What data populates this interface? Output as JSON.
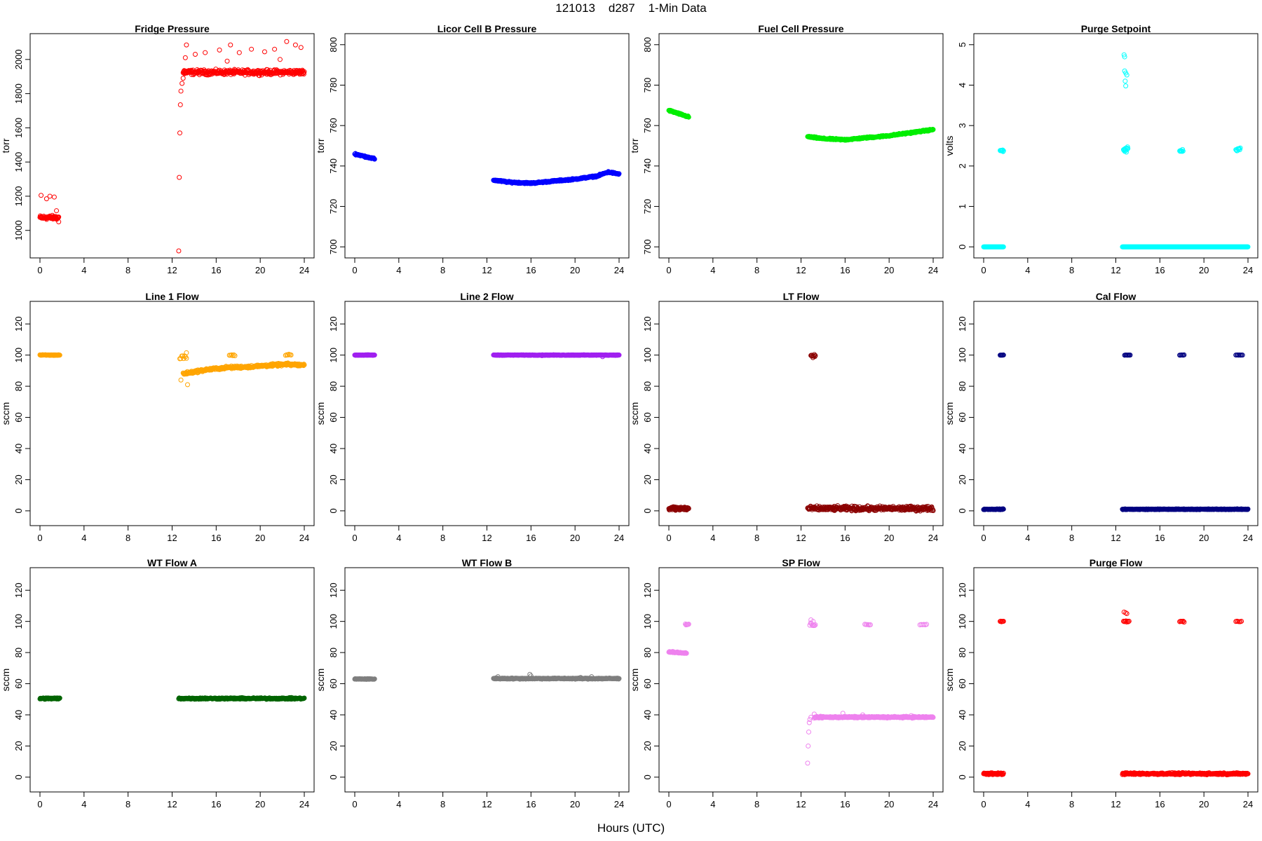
{
  "figure": {
    "title": "121013    d287    1-Min Data",
    "xlabel": "Hours (UTC)"
  },
  "chart_data": [
    {
      "type": "scatter",
      "title": "Fridge Pressure",
      "ylabel": "torr",
      "color": "#ff0000",
      "xlim": [
        0,
        24
      ],
      "ylim": [
        880,
        2110
      ],
      "xticks": [
        0,
        4,
        8,
        12,
        16,
        20,
        24
      ],
      "yticks": [
        1000,
        1200,
        1400,
        1600,
        1800,
        2000
      ],
      "segments": [
        {
          "x_range": [
            0.0,
            1.7
          ],
          "base": 1075,
          "slope": 0,
          "noise": 10,
          "n": 60,
          "outliers": [
            [
              0.1,
              1205
            ],
            [
              0.6,
              1185
            ],
            [
              0.9,
              1200
            ],
            [
              1.3,
              1195
            ],
            [
              1.5,
              1115
            ],
            [
              1.7,
              1050
            ]
          ]
        },
        {
          "x_range": [
            13.0,
            24.0
          ],
          "base": 1925,
          "slope": 0,
          "noise": 12,
          "n": 320,
          "outliers": [
            [
              12.6,
              880
            ],
            [
              12.65,
              1310
            ],
            [
              12.7,
              1570
            ],
            [
              12.75,
              1735
            ],
            [
              12.8,
              1815
            ],
            [
              12.9,
              1860
            ],
            [
              13.0,
              1890
            ],
            [
              13.1,
              1935
            ],
            [
              13.2,
              2010
            ],
            [
              13.3,
              2085
            ],
            [
              14.1,
              2030
            ],
            [
              15.0,
              2040
            ],
            [
              16.3,
              2055
            ],
            [
              17.3,
              2085
            ],
            [
              18.1,
              2040
            ],
            [
              19.2,
              2060
            ],
            [
              20.4,
              2045
            ],
            [
              21.3,
              2060
            ],
            [
              22.4,
              2105
            ],
            [
              23.2,
              2085
            ],
            [
              23.7,
              2070
            ],
            [
              17.0,
              1990
            ],
            [
              21.8,
              2000
            ]
          ]
        }
      ]
    },
    {
      "type": "scatter",
      "title": "Licor Cell B Pressure",
      "ylabel": "torr",
      "color": "#0000ff",
      "xlim": [
        0,
        24
      ],
      "ylim": [
        698,
        802
      ],
      "xticks": [
        0,
        4,
        8,
        12,
        16,
        20,
        24
      ],
      "yticks": [
        700,
        720,
        740,
        760,
        780,
        800
      ],
      "segments": [
        {
          "x_range": [
            0.0,
            1.8
          ],
          "base": 746,
          "slope": -1.4,
          "noise": 0.3,
          "n": 60
        },
        {
          "x_range": [
            12.6,
            24.0
          ],
          "base": 733,
          "slope": 0,
          "noise": 0.3,
          "n": 340,
          "curve": [
            [
              12.6,
              733
            ],
            [
              14,
              732
            ],
            [
              16,
              731.5
            ],
            [
              18,
              732.5
            ],
            [
              20,
              733.5
            ],
            [
              22,
              735
            ],
            [
              23,
              737
            ],
            [
              24,
              736
            ]
          ]
        }
      ]
    },
    {
      "type": "scatter",
      "title": "Fuel Cell Pressure",
      "ylabel": "torr",
      "color": "#00ee00",
      "xlim": [
        0,
        24
      ],
      "ylim": [
        698,
        802
      ],
      "xticks": [
        0,
        4,
        8,
        12,
        16,
        20,
        24
      ],
      "yticks": [
        700,
        720,
        740,
        760,
        780,
        800
      ],
      "segments": [
        {
          "x_range": [
            0.0,
            1.8
          ],
          "base": 767.5,
          "slope": -1.8,
          "noise": 0.3,
          "n": 60
        },
        {
          "x_range": [
            12.6,
            24.0
          ],
          "base": 754,
          "slope": 0,
          "noise": 0.3,
          "n": 340,
          "curve": [
            [
              12.6,
              754.5
            ],
            [
              14,
              753.5
            ],
            [
              16,
              753
            ],
            [
              18,
              754
            ],
            [
              20,
              755
            ],
            [
              22,
              756.5
            ],
            [
              24,
              758
            ]
          ]
        }
      ]
    },
    {
      "type": "scatter",
      "title": "Purge Setpoint",
      "ylabel": "volts",
      "color": "#00ffff",
      "xlim": [
        0,
        24
      ],
      "ylim": [
        -0.1,
        5.1
      ],
      "xticks": [
        0,
        4,
        8,
        12,
        16,
        20,
        24
      ],
      "yticks": [
        0,
        1,
        2,
        3,
        4,
        5
      ],
      "segments": [
        {
          "x_range": [
            0.0,
            1.8
          ],
          "base": 0,
          "slope": 0,
          "noise": 0,
          "n": 50
        },
        {
          "x_range": [
            12.6,
            24.0
          ],
          "base": 0,
          "slope": 0,
          "noise": 0,
          "n": 340
        },
        {
          "x_range": [
            1.5,
            1.8
          ],
          "base": 2.38,
          "slope": 0,
          "noise": 0.02,
          "n": 10
        },
        {
          "x_range": [
            12.7,
            13.1
          ],
          "base": 2.4,
          "slope": 0,
          "noise": 0.05,
          "n": 12
        },
        {
          "x_range": [
            17.8,
            18.1
          ],
          "base": 2.38,
          "slope": 0,
          "noise": 0.02,
          "n": 8
        },
        {
          "x_range": [
            22.9,
            23.3
          ],
          "base": 2.4,
          "slope": 0.1,
          "noise": 0.04,
          "n": 10
        }
      ],
      "extra_points": [
        [
          12.75,
          4.75
        ],
        [
          12.8,
          4.7
        ],
        [
          12.8,
          4.35
        ],
        [
          12.9,
          4.3
        ],
        [
          13.0,
          4.25
        ],
        [
          12.85,
          4.1
        ],
        [
          12.9,
          3.98
        ]
      ]
    },
    {
      "type": "scatter",
      "title": "Line 1 Flow",
      "ylabel": "sccm",
      "color": "#ffa500",
      "xlim": [
        0,
        24
      ],
      "ylim": [
        -5,
        130
      ],
      "xticks": [
        0,
        4,
        8,
        12,
        16,
        20,
        24
      ],
      "yticks": [
        0,
        20,
        40,
        60,
        80,
        100,
        120
      ],
      "segments": [
        {
          "x_range": [
            0.0,
            1.8
          ],
          "base": 100,
          "slope": 0,
          "noise": 0.2,
          "n": 60
        },
        {
          "x_range": [
            13.0,
            24.0
          ],
          "base": 90,
          "slope": 0,
          "noise": 0.7,
          "n": 320,
          "curve": [
            [
              13.0,
              88
            ],
            [
              15,
              90.5
            ],
            [
              17,
              92
            ],
            [
              19,
              92.5
            ],
            [
              21,
              93.5
            ],
            [
              22.5,
              94
            ],
            [
              24,
              93.5
            ]
          ]
        },
        {
          "x_range": [
            12.7,
            13.3
          ],
          "base": 99,
          "slope": 0,
          "noise": 1,
          "n": 8
        },
        {
          "x_range": [
            17.2,
            17.7
          ],
          "base": 100,
          "slope": 0,
          "noise": 0.4,
          "n": 6
        },
        {
          "x_range": [
            22.3,
            22.8
          ],
          "base": 100,
          "slope": 0,
          "noise": 0.4,
          "n": 6
        }
      ],
      "extra_points": [
        [
          13.4,
          81
        ],
        [
          12.8,
          84
        ],
        [
          13.3,
          101.5
        ]
      ]
    },
    {
      "type": "scatter",
      "title": "Line 2 Flow",
      "ylabel": "sccm",
      "color": "#a020f0",
      "xlim": [
        0,
        24
      ],
      "ylim": [
        -5,
        130
      ],
      "xticks": [
        0,
        4,
        8,
        12,
        16,
        20,
        24
      ],
      "yticks": [
        0,
        20,
        40,
        60,
        80,
        100,
        120
      ],
      "segments": [
        {
          "x_range": [
            0.0,
            1.8
          ],
          "base": 100,
          "slope": 0,
          "noise": 0.15,
          "n": 60
        },
        {
          "x_range": [
            12.6,
            24.0
          ],
          "base": 100,
          "slope": 0,
          "noise": 0.15,
          "n": 340
        }
      ],
      "extra_points": [
        [
          22.5,
          99
        ],
        [
          17.0,
          99.6
        ]
      ]
    },
    {
      "type": "scatter",
      "title": "LT Flow",
      "ylabel": "sccm",
      "color": "#8b0000",
      "xlim": [
        0,
        24
      ],
      "ylim": [
        -5,
        130
      ],
      "xticks": [
        0,
        4,
        8,
        12,
        16,
        20,
        24
      ],
      "yticks": [
        0,
        20,
        40,
        60,
        80,
        100,
        120
      ],
      "segments": [
        {
          "x_range": [
            0.0,
            1.8
          ],
          "base": 1.5,
          "slope": 0,
          "noise": 1.2,
          "n": 60
        },
        {
          "x_range": [
            12.6,
            24.0
          ],
          "base": 1.5,
          "slope": 0,
          "noise": 1.2,
          "n": 340
        },
        {
          "x_range": [
            12.9,
            13.3
          ],
          "base": 99.5,
          "slope": 0,
          "noise": 1,
          "n": 10
        }
      ]
    },
    {
      "type": "scatter",
      "title": "Cal Flow",
      "ylabel": "sccm",
      "color": "#000080",
      "xlim": [
        0,
        24
      ],
      "ylim": [
        -5,
        130
      ],
      "xticks": [
        0,
        4,
        8,
        12,
        16,
        20,
        24
      ],
      "yticks": [
        0,
        20,
        40,
        60,
        80,
        100,
        120
      ],
      "segments": [
        {
          "x_range": [
            0.0,
            1.8
          ],
          "base": 1,
          "slope": 0,
          "noise": 0.2,
          "n": 50
        },
        {
          "x_range": [
            12.6,
            24.0
          ],
          "base": 1,
          "slope": 0,
          "noise": 0.2,
          "n": 330
        },
        {
          "x_range": [
            1.5,
            1.8
          ],
          "base": 100,
          "slope": 0,
          "noise": 0.1,
          "n": 6
        },
        {
          "x_range": [
            12.8,
            13.3
          ],
          "base": 100,
          "slope": 0,
          "noise": 0.1,
          "n": 8
        },
        {
          "x_range": [
            17.8,
            18.2
          ],
          "base": 100,
          "slope": 0,
          "noise": 0.1,
          "n": 6
        },
        {
          "x_range": [
            22.9,
            23.5
          ],
          "base": 100,
          "slope": 0,
          "noise": 0.1,
          "n": 8
        }
      ]
    },
    {
      "type": "scatter",
      "title": "WT Flow A",
      "ylabel": "sccm",
      "color": "#006400",
      "xlim": [
        0,
        24
      ],
      "ylim": [
        -5,
        130
      ],
      "xticks": [
        0,
        4,
        8,
        12,
        16,
        20,
        24
      ],
      "yticks": [
        0,
        20,
        40,
        60,
        80,
        100,
        120
      ],
      "segments": [
        {
          "x_range": [
            0.0,
            1.8
          ],
          "base": 50.5,
          "slope": 0,
          "noise": 0.4,
          "n": 60
        },
        {
          "x_range": [
            12.6,
            24.0
          ],
          "base": 50.5,
          "slope": 0,
          "noise": 0.4,
          "n": 340
        }
      ]
    },
    {
      "type": "scatter",
      "title": "WT Flow B",
      "ylabel": "sccm",
      "color": "#7f7f7f",
      "xlim": [
        0,
        24
      ],
      "ylim": [
        -5,
        130
      ],
      "xticks": [
        0,
        4,
        8,
        12,
        16,
        20,
        24
      ],
      "yticks": [
        0,
        20,
        40,
        60,
        80,
        100,
        120
      ],
      "segments": [
        {
          "x_range": [
            0.0,
            1.8
          ],
          "base": 63,
          "slope": 0,
          "noise": 0.2,
          "n": 60
        },
        {
          "x_range": [
            12.6,
            24.0
          ],
          "base": 63.3,
          "slope": 0,
          "noise": 0.3,
          "n": 340
        }
      ],
      "extra_points": [
        [
          13.0,
          64.5
        ],
        [
          15.9,
          66
        ],
        [
          16.0,
          65
        ],
        [
          20.5,
          64
        ],
        [
          21.5,
          64.5
        ]
      ]
    },
    {
      "type": "scatter",
      "title": "SP Flow",
      "ylabel": "sccm",
      "color": "#ee82ee",
      "xlim": [
        0,
        24
      ],
      "ylim": [
        -5,
        130
      ],
      "xticks": [
        0,
        4,
        8,
        12,
        16,
        20,
        24
      ],
      "yticks": [
        0,
        20,
        40,
        60,
        80,
        100,
        120
      ],
      "segments": [
        {
          "x_range": [
            0.0,
            1.6
          ],
          "base": 80.5,
          "slope": -0.6,
          "noise": 0.3,
          "n": 50
        },
        {
          "x_range": [
            1.5,
            1.8
          ],
          "base": 98,
          "slope": 0,
          "noise": 0.2,
          "n": 6
        },
        {
          "x_range": [
            13.2,
            24.0
          ],
          "base": 38.5,
          "slope": 0,
          "noise": 0.4,
          "n": 320
        },
        {
          "x_range": [
            12.8,
            13.3
          ],
          "base": 98,
          "slope": 0,
          "noise": 1,
          "n": 8
        },
        {
          "x_range": [
            17.8,
            18.3
          ],
          "base": 98,
          "slope": 0,
          "noise": 0.2,
          "n": 6
        },
        {
          "x_range": [
            22.8,
            23.4
          ],
          "base": 98,
          "slope": 0,
          "noise": 0.2,
          "n": 6
        }
      ],
      "extra_points": [
        [
          12.6,
          9
        ],
        [
          12.65,
          20
        ],
        [
          12.7,
          29
        ],
        [
          12.75,
          35
        ],
        [
          12.8,
          37
        ],
        [
          12.9,
          38.5
        ],
        [
          13.2,
          40.5
        ],
        [
          15.8,
          41
        ],
        [
          17.6,
          40
        ],
        [
          22.0,
          39.5
        ],
        [
          12.9,
          101
        ],
        [
          13.1,
          100
        ]
      ]
    },
    {
      "type": "scatter",
      "title": "Purge Flow",
      "ylabel": "sccm",
      "color": "#ff0000",
      "xlim": [
        0,
        24
      ],
      "ylim": [
        -5,
        130
      ],
      "xticks": [
        0,
        4,
        8,
        12,
        16,
        20,
        24
      ],
      "yticks": [
        0,
        20,
        40,
        60,
        80,
        100,
        120
      ],
      "segments": [
        {
          "x_range": [
            0.0,
            1.8
          ],
          "base": 2.2,
          "slope": 0,
          "noise": 0.5,
          "n": 60
        },
        {
          "x_range": [
            12.6,
            24.0
          ],
          "base": 2.2,
          "slope": 0,
          "noise": 0.5,
          "n": 340
        },
        {
          "x_range": [
            1.5,
            1.8
          ],
          "base": 100,
          "slope": 0,
          "noise": 0.3,
          "n": 6
        },
        {
          "x_range": [
            12.7,
            13.2
          ],
          "base": 100,
          "slope": 0,
          "noise": 0.3,
          "n": 8
        },
        {
          "x_range": [
            17.8,
            18.2
          ],
          "base": 100,
          "slope": 0,
          "noise": 0.3,
          "n": 6
        },
        {
          "x_range": [
            22.9,
            23.4
          ],
          "base": 100,
          "slope": 0,
          "noise": 0.3,
          "n": 6
        }
      ],
      "extra_points": [
        [
          12.75,
          106
        ],
        [
          12.9,
          105.5
        ],
        [
          13.0,
          105
        ]
      ]
    }
  ]
}
